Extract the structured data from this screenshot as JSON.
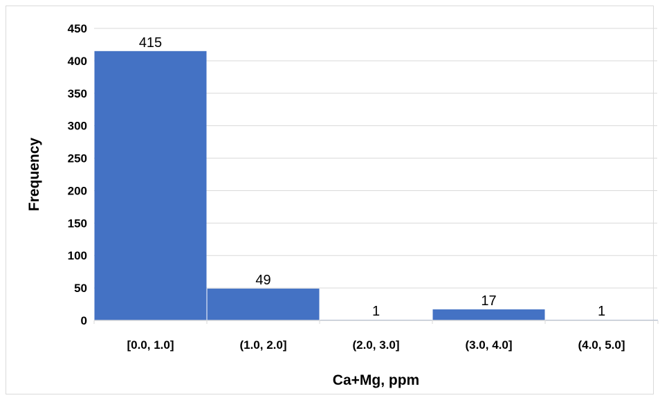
{
  "chart_data": {
    "type": "bar",
    "title": "",
    "xlabel": "Ca+Mg, ppm",
    "ylabel": "Frequency",
    "categories": [
      "[0.0, 1.0]",
      "(1.0, 2.0]",
      "(2.0, 3.0]",
      "(3.0, 4.0]",
      "(4.0, 5.0]"
    ],
    "values": [
      415,
      49,
      1,
      17,
      1
    ],
    "data_labels": [
      "415",
      "49",
      "1",
      "17",
      "1"
    ],
    "ylim": [
      0,
      450
    ],
    "yticks": [
      0,
      50,
      100,
      150,
      200,
      250,
      300,
      350,
      400,
      450
    ],
    "ytick_labels": [
      "0",
      "50",
      "100",
      "150",
      "200",
      "250",
      "300",
      "350",
      "400",
      "450"
    ],
    "grid": true,
    "legend": "none",
    "bar_color": "#4472c4",
    "grid_color": "#d9d9d9"
  }
}
